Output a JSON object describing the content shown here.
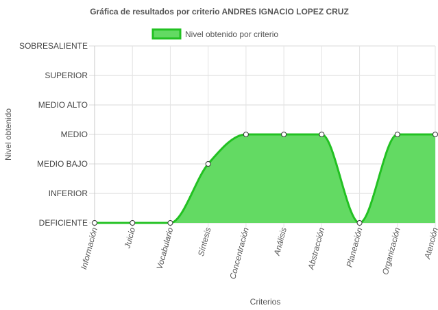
{
  "chart_data": {
    "type": "area",
    "title": "Gráfica de resultados por criterio ANDRES IGNACIO LOPEZ CRUZ",
    "xlabel": "Criterios",
    "ylabel": "Nivel obtenido",
    "categories": [
      "Información",
      "Juicio",
      "Vocabulario",
      "Síntesis",
      "Concentración",
      "Análisis",
      "Abstracción",
      "Planeación",
      "Organización",
      "Atención"
    ],
    "y_levels": [
      "DEFICIENTE",
      "INFERIOR",
      "MEDIO BAJO",
      "MEDIO",
      "MEDIO ALTO",
      "SUPERIOR",
      "SOBRESALIENTE"
    ],
    "ylim": [
      0,
      6
    ],
    "grid": true,
    "legend_position": "top-center",
    "series": [
      {
        "name": "Nivel obtenido por criterio",
        "values": [
          0,
          0,
          0,
          2,
          3,
          3,
          3,
          0,
          3,
          3
        ],
        "color": "#22c122",
        "fill": "#63da63"
      }
    ]
  }
}
